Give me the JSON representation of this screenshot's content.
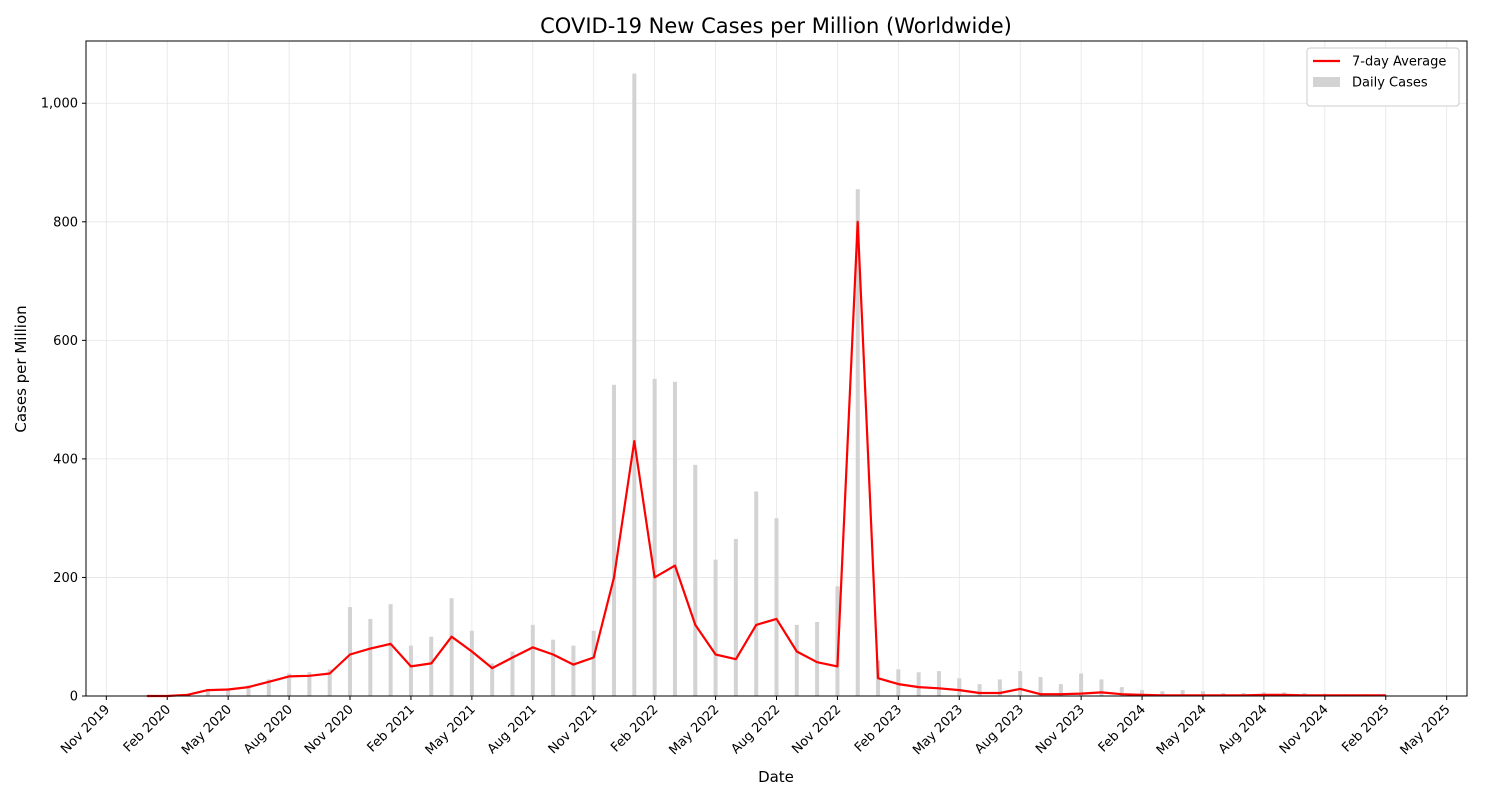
{
  "chart_data": {
    "type": "line",
    "title": "COVID-19 New Cases per Million (Worldwide)",
    "x_label": "Date",
    "y_label": "Cases per Million",
    "x": [
      "Jan 2020",
      "Feb 2020",
      "Mar 2020",
      "Apr 2020",
      "May 2020",
      "Jun 2020",
      "Jul 2020",
      "Aug 2020",
      "Sep 2020",
      "Oct 2020",
      "Nov 2020",
      "Dec 2020",
      "Jan 2021",
      "Feb 2021",
      "Mar 2021",
      "Apr 2021",
      "May 2021",
      "Jun 2021",
      "Jul 2021",
      "Aug 2021",
      "Sep 2021",
      "Oct 2021",
      "Nov 2021",
      "Dec 2021",
      "Jan 2022",
      "Feb 2022",
      "Mar 2022",
      "Apr 2022",
      "May 2022",
      "Jun 2022",
      "Jul 2022",
      "Aug 2022",
      "Sep 2022",
      "Oct 2022",
      "Nov 2022",
      "Dec 2022",
      "Jan 2023",
      "Feb 2023",
      "Mar 2023",
      "Apr 2023",
      "May 2023",
      "Jun 2023",
      "Jul 2023",
      "Aug 2023",
      "Sep 2023",
      "Oct 2023",
      "Nov 2023",
      "Dec 2023",
      "Jan 2024",
      "Feb 2024",
      "Mar 2024",
      "Apr 2024",
      "May 2024",
      "Jun 2024",
      "Jul 2024",
      "Aug 2024",
      "Sep 2024",
      "Oct 2024",
      "Nov 2024",
      "Dec 2024",
      "Jan 2025",
      "Feb 2025"
    ],
    "series": [
      {
        "name": "7-day Average",
        "kind": "line",
        "color": "#ff0000",
        "values": [
          0,
          0,
          2,
          10,
          11,
          15,
          24,
          33,
          34,
          38,
          70,
          80,
          88,
          50,
          55,
          100,
          75,
          47,
          65,
          82,
          70,
          53,
          65,
          200,
          430,
          200,
          220,
          120,
          70,
          62,
          120,
          130,
          75,
          57,
          50,
          800,
          30,
          20,
          15,
          13,
          10,
          5,
          5,
          12,
          3,
          3,
          4,
          6,
          3,
          2,
          1,
          1,
          1,
          1,
          1,
          2,
          2,
          1,
          1,
          1,
          1,
          1
        ]
      },
      {
        "name": "Daily Cases",
        "kind": "bar",
        "color": "#d3d3d3",
        "values": [
          0,
          0,
          3,
          12,
          13,
          18,
          28,
          38,
          40,
          45,
          150,
          130,
          155,
          85,
          100,
          165,
          110,
          55,
          75,
          120,
          95,
          85,
          110,
          525,
          1050,
          535,
          530,
          390,
          230,
          265,
          345,
          300,
          120,
          125,
          185,
          855,
          60,
          45,
          40,
          42,
          30,
          20,
          28,
          42,
          32,
          20,
          38,
          28,
          15,
          10,
          8,
          10,
          8,
          5,
          5,
          6,
          6,
          5,
          4,
          3,
          3,
          2
        ]
      }
    ],
    "xlim": [
      "Oct 2019",
      "Jun 2025"
    ],
    "xticks": [
      "Nov 2019",
      "Feb 2020",
      "May 2020",
      "Aug 2020",
      "Nov 2020",
      "Feb 2021",
      "May 2021",
      "Aug 2021",
      "Nov 2021",
      "Feb 2022",
      "May 2022",
      "Aug 2022",
      "Nov 2022",
      "Feb 2023",
      "May 2023",
      "Aug 2023",
      "Nov 2023",
      "Feb 2024",
      "May 2024",
      "Aug 2024",
      "Nov 2024",
      "Feb 2025",
      "May 2025"
    ],
    "ylim": [
      0,
      1105
    ],
    "yticks": [
      0,
      200,
      400,
      600,
      800,
      {
        "value": 1000,
        "label": "1,000"
      }
    ],
    "grid": true,
    "legend": "upper right"
  }
}
